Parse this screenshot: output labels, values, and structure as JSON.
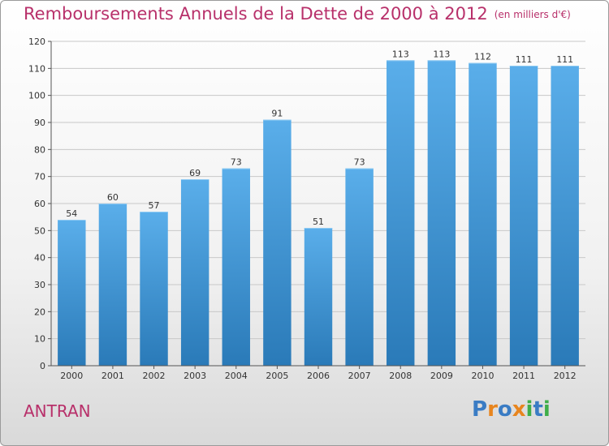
{
  "header": {
    "title": "Remboursements Annuels de la Dette de 2000 à 2012",
    "unit": "(en milliers d'€)"
  },
  "footer": {
    "commune": "ANTRAN",
    "brand": "Proxiti"
  },
  "colors": {
    "title": "#b8306a",
    "bar_top": "#5aaeea",
    "bar_bottom": "#2a7ab8",
    "logo_letters": [
      "#3a7cc4",
      "#e8851e",
      "#3a7cc4",
      "#e8851e",
      "#3fae49",
      "#3a7cc4",
      "#3fae49"
    ]
  },
  "chart_data": {
    "type": "bar",
    "title": "Remboursements Annuels de la Dette de 2000 à 2012",
    "unit_label": "(en milliers d'€)",
    "xlabel": "",
    "ylabel": "",
    "categories": [
      "2000",
      "2001",
      "2002",
      "2003",
      "2004",
      "2005",
      "2006",
      "2007",
      "2008",
      "2009",
      "2010",
      "2011",
      "2012"
    ],
    "values": [
      54,
      60,
      57,
      69,
      73,
      91,
      51,
      73,
      113,
      113,
      112,
      111,
      111
    ],
    "ylim": [
      0,
      120
    ],
    "yticks": [
      0,
      10,
      20,
      30,
      40,
      50,
      60,
      70,
      80,
      90,
      100,
      110,
      120
    ],
    "grid": true,
    "legend": "none"
  }
}
